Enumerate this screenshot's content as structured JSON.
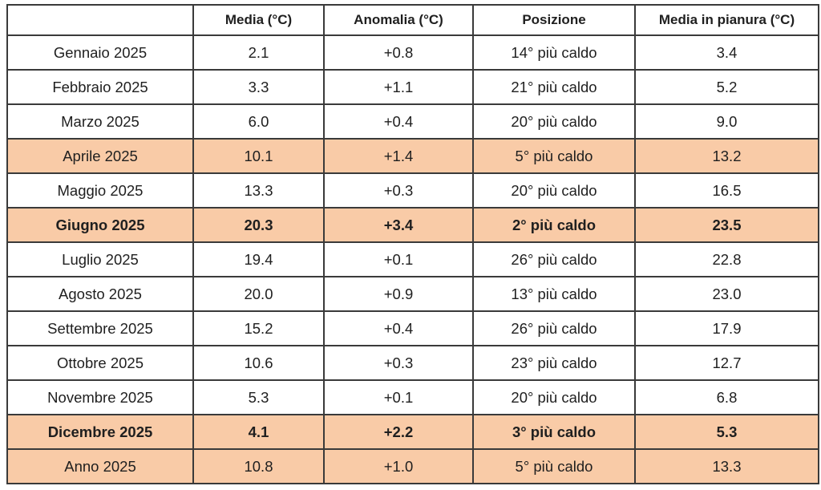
{
  "chart_data": {
    "type": "table",
    "title": "",
    "columns": [
      "",
      "Media (°C)",
      "Anomalia (°C)",
      "Posizione",
      "Media in pianura (°C)"
    ],
    "rows": [
      {
        "label": "Gennaio 2025",
        "media": "2.1",
        "anomalia": "+0.8",
        "posizione": "14° più caldo",
        "pianura": "3.4",
        "highlight": false,
        "bold": false
      },
      {
        "label": "Febbraio 2025",
        "media": "3.3",
        "anomalia": "+1.1",
        "posizione": "21° più caldo",
        "pianura": "5.2",
        "highlight": false,
        "bold": false
      },
      {
        "label": "Marzo 2025",
        "media": "6.0",
        "anomalia": "+0.4",
        "posizione": "20° più caldo",
        "pianura": "9.0",
        "highlight": false,
        "bold": false
      },
      {
        "label": "Aprile 2025",
        "media": "10.1",
        "anomalia": "+1.4",
        "posizione": "5° più caldo",
        "pianura": "13.2",
        "highlight": true,
        "bold": false
      },
      {
        "label": "Maggio 2025",
        "media": "13.3",
        "anomalia": "+0.3",
        "posizione": "20° più caldo",
        "pianura": "16.5",
        "highlight": false,
        "bold": false
      },
      {
        "label": "Giugno 2025",
        "media": "20.3",
        "anomalia": "+3.4",
        "posizione": "2° più caldo",
        "pianura": "23.5",
        "highlight": true,
        "bold": true
      },
      {
        "label": "Luglio 2025",
        "media": "19.4",
        "anomalia": "+0.1",
        "posizione": "26° più caldo",
        "pianura": "22.8",
        "highlight": false,
        "bold": false
      },
      {
        "label": "Agosto 2025",
        "media": "20.0",
        "anomalia": "+0.9",
        "posizione": "13° più caldo",
        "pianura": "23.0",
        "highlight": false,
        "bold": false
      },
      {
        "label": "Settembre 2025",
        "media": "15.2",
        "anomalia": "+0.4",
        "posizione": "26° più caldo",
        "pianura": "17.9",
        "highlight": false,
        "bold": false
      },
      {
        "label": "Ottobre 2025",
        "media": "10.6",
        "anomalia": "+0.3",
        "posizione": "23° più caldo",
        "pianura": "12.7",
        "highlight": false,
        "bold": false
      },
      {
        "label": "Novembre 2025",
        "media": "5.3",
        "anomalia": "+0.1",
        "posizione": "20° più caldo",
        "pianura": "6.8",
        "highlight": false,
        "bold": false
      },
      {
        "label": "Dicembre 2025",
        "media": "4.1",
        "anomalia": "+2.2",
        "posizione": "3° più caldo",
        "pianura": "5.3",
        "highlight": true,
        "bold": true
      },
      {
        "label": "Anno 2025",
        "media": "10.8",
        "anomalia": "+1.0",
        "posizione": "5° più caldo",
        "pianura": "13.3",
        "highlight": true,
        "bold": false
      }
    ],
    "colors": {
      "highlight": "#f9cba7",
      "border": "#3a3a3a",
      "text": "#1f1f1f",
      "background": "#ffffff"
    },
    "layout_hints": {
      "grid": "all-borders",
      "alignment": "center",
      "header_bold": true
    }
  }
}
